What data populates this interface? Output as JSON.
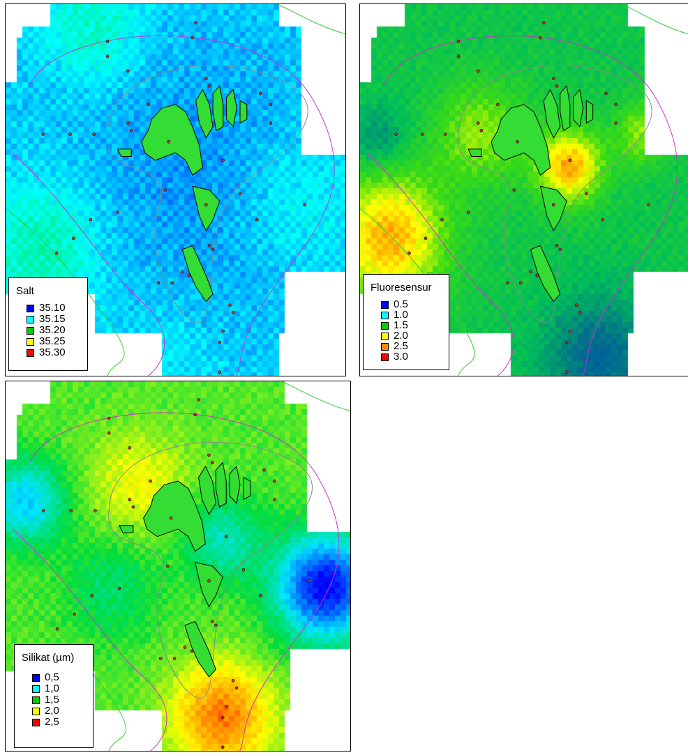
{
  "maps": [
    {
      "id": "salt",
      "legend": {
        "title": "Salt",
        "items": [
          {
            "label": "35.10",
            "color": "#0000ff"
          },
          {
            "label": "35.15",
            "color": "#00ffff"
          },
          {
            "label": "35.20",
            "color": "#00cc00"
          },
          {
            "label": "35.25",
            "color": "#ffff00"
          },
          {
            "label": "35.30",
            "color": "#ff0000"
          }
        ]
      },
      "palette": "salt"
    },
    {
      "id": "fluoresensur",
      "legend": {
        "title": "Fluoresensur",
        "items": [
          {
            "label": "0.5",
            "color": "#0000ff"
          },
          {
            "label": "1.0",
            "color": "#00ffff"
          },
          {
            "label": "1.5",
            "color": "#00cc00"
          },
          {
            "label": "2.0",
            "color": "#ffff00"
          },
          {
            "label": "2.5",
            "color": "#ff8800"
          },
          {
            "label": "3.0",
            "color": "#ff0000"
          }
        ]
      },
      "palette": "fluor"
    },
    {
      "id": "silikat",
      "legend": {
        "title": "Silikat (µm)",
        "items": [
          {
            "label": "0,5",
            "color": "#0000ff"
          },
          {
            "label": "1,0",
            "color": "#00ffff"
          },
          {
            "label": "1,5",
            "color": "#00cc00"
          },
          {
            "label": "2,0",
            "color": "#ffff00"
          },
          {
            "label": "2,5",
            "color": "#ff0000"
          }
        ]
      },
      "palette": "silikat"
    }
  ],
  "colors": {
    "island_fill": "#33dd33",
    "depth_contour_inner": "#888888",
    "depth_contour_outer": "#cc33cc",
    "coast_line": "#33cc33",
    "station_dot": "#cc3333"
  }
}
